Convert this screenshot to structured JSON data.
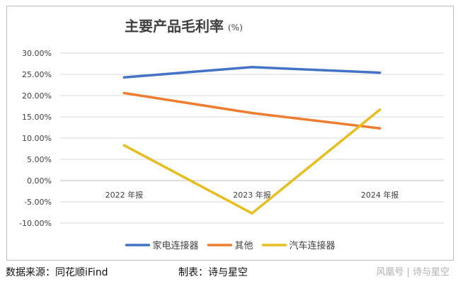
{
  "chart_data": {
    "type": "line",
    "title": "主要产品毛利率",
    "title_unit": "(%)",
    "categories": [
      "2022 年报",
      "2023 年报",
      "2024 年报"
    ],
    "y_ticks": [
      "30.00%",
      "25.00%",
      "20.00%",
      "15.00%",
      "10.00%",
      "5.00%",
      "0.00%",
      "-5.00%",
      "-10.00%"
    ],
    "ylim": [
      -10,
      30
    ],
    "grid": true,
    "legend_position": "bottom",
    "series": [
      {
        "name": "家电连接器",
        "color": "#4472c4",
        "values": [
          24.3,
          26.7,
          25.4
        ]
      },
      {
        "name": "其他",
        "color": "#ed7d31",
        "values": [
          20.6,
          15.9,
          12.3
        ]
      },
      {
        "name": "汽车连接器",
        "color": "#e6be1e",
        "values": [
          8.3,
          -7.7,
          16.7
        ]
      }
    ]
  },
  "footer": {
    "source": "数据来源：同花顺iFind",
    "maker": "制表：诗与星空"
  },
  "watermark": "风凰号 | 诗与星空"
}
